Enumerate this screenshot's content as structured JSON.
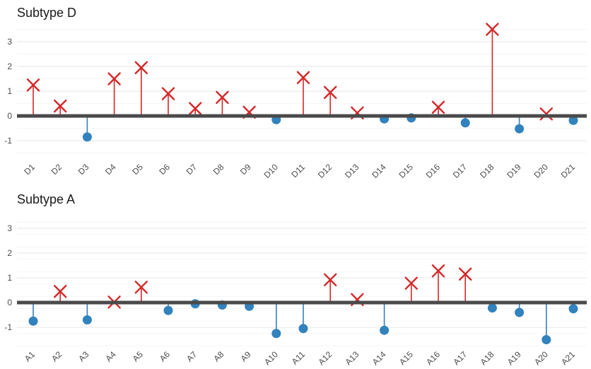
{
  "chart_data": [
    {
      "type": "lollipop",
      "title": "Subtype D",
      "ylim": [
        -1.5,
        3.75
      ],
      "yticks": [
        -1,
        0,
        1,
        2,
        3
      ],
      "categories": [
        "D1",
        "D2",
        "D3",
        "D4",
        "D5",
        "D6",
        "D7",
        "D8",
        "D9",
        "D10",
        "D11",
        "D12",
        "D13",
        "D14",
        "D15",
        "D16",
        "D17",
        "D18",
        "D19",
        "D20",
        "D21"
      ],
      "values": [
        1.25,
        0.4,
        -0.85,
        1.5,
        1.95,
        0.9,
        0.3,
        0.75,
        0.15,
        -0.15,
        1.55,
        0.95,
        0.12,
        -0.12,
        -0.08,
        0.35,
        -0.28,
        3.5,
        -0.52,
        0.08,
        -0.18
      ],
      "colors": {
        "positive": "#d62728",
        "negative": "#3182bd"
      },
      "markers": {
        "positive": "cross-icon",
        "negative": "dot-icon"
      }
    },
    {
      "type": "lollipop",
      "title": "Subtype A",
      "ylim": [
        -1.75,
        3.5
      ],
      "yticks": [
        -1,
        0,
        1,
        2,
        3
      ],
      "categories": [
        "A1",
        "A2",
        "A3",
        "A4",
        "A5",
        "A6",
        "A7",
        "A8",
        "A9",
        "A10",
        "A11",
        "A12",
        "A13",
        "A14",
        "A15",
        "A16",
        "A17",
        "A18",
        "A19",
        "A20",
        "A21"
      ],
      "values": [
        -0.75,
        0.45,
        -0.7,
        0.02,
        0.62,
        -0.32,
        -0.05,
        -0.1,
        -0.15,
        -1.25,
        -1.05,
        0.92,
        0.12,
        -1.12,
        0.78,
        1.28,
        1.15,
        -0.22,
        -0.4,
        -1.5,
        -0.25
      ],
      "colors": {
        "positive": "#d62728",
        "negative": "#3182bd"
      },
      "markers": {
        "positive": "cross-icon",
        "negative": "dot-icon"
      }
    }
  ]
}
